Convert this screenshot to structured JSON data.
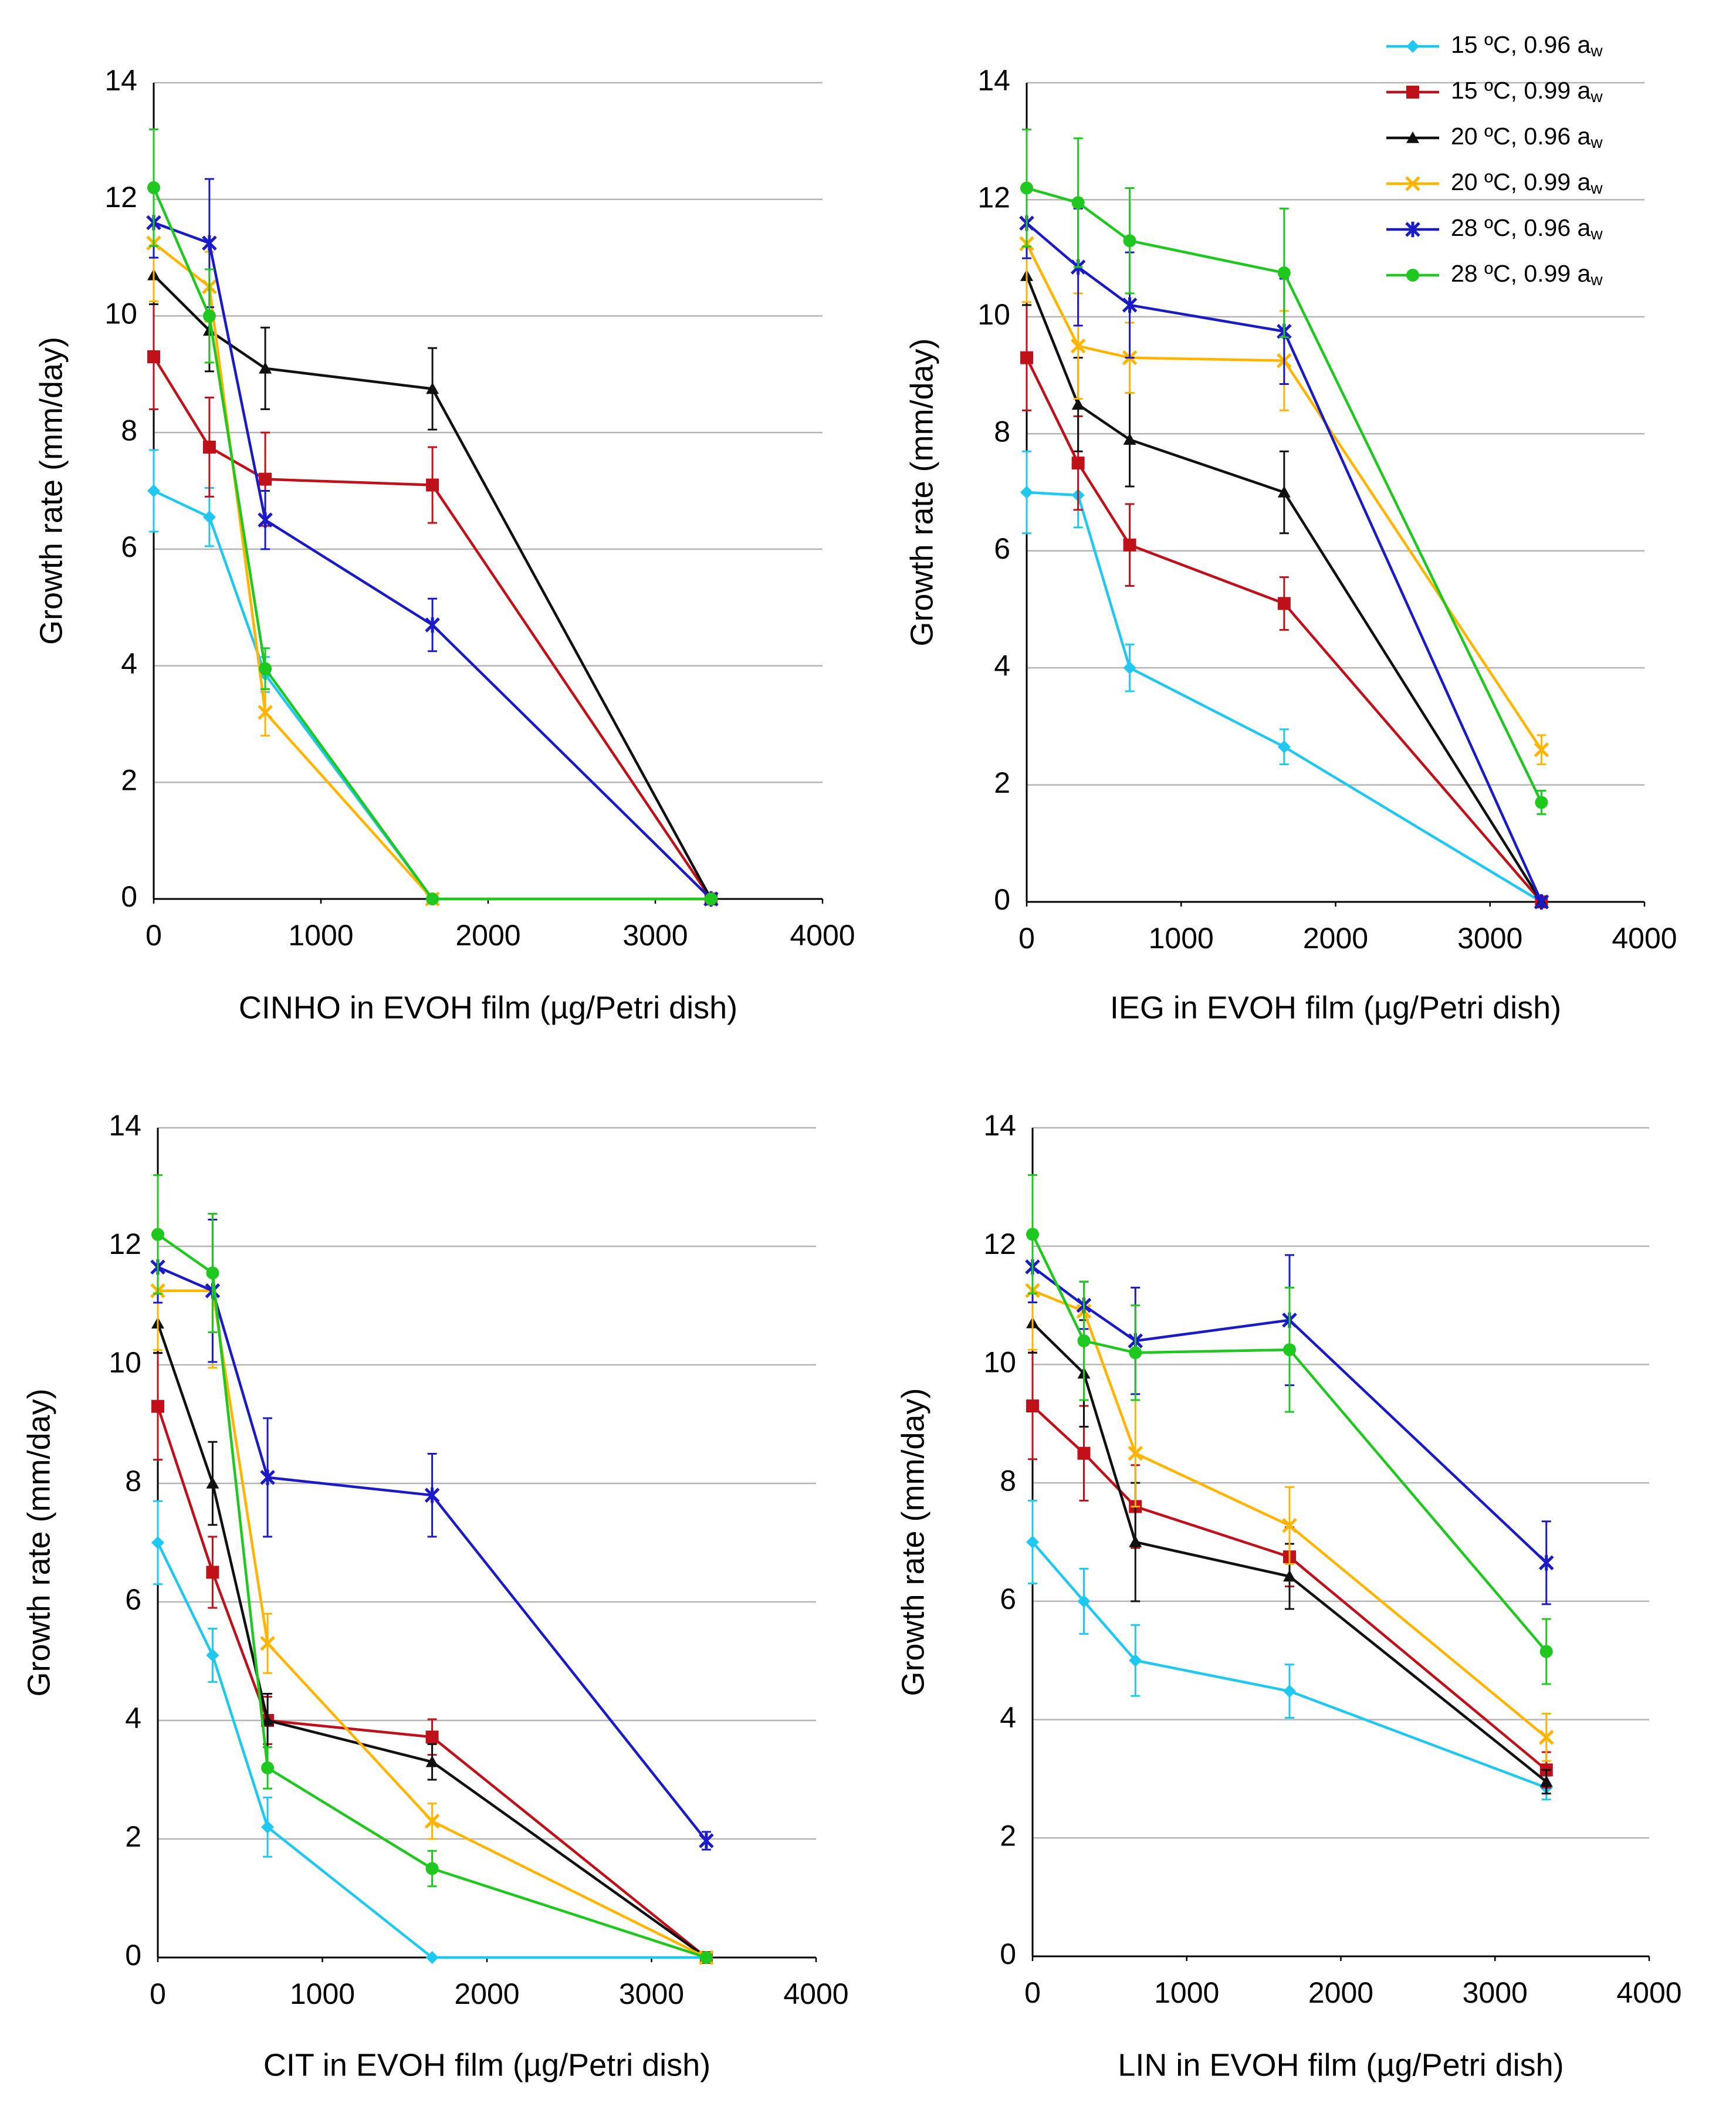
{
  "chart_data": [
    {
      "type": "line",
      "xlabel": "CINHO in EVOH film (µg/Petri dish)",
      "ylabel": "Growth rate (mm/day)",
      "x": [
        0,
        333,
        667,
        1667,
        3333
      ],
      "xlim": [
        0,
        4000
      ],
      "xticks": [
        0,
        1000,
        2000,
        3000,
        4000
      ],
      "ylim": [
        0,
        14
      ],
      "yticks": [
        0,
        2,
        4,
        6,
        8,
        10,
        12,
        14
      ],
      "grid": true,
      "series": [
        {
          "color": "#1ec8f0",
          "marker": "diamond",
          "values": [
            7.0,
            6.55,
            3.85,
            0,
            0
          ],
          "errors": [
            0.7,
            0.5,
            0.3,
            0,
            0
          ]
        },
        {
          "color": "#c0101a",
          "marker": "square",
          "values": [
            9.3,
            7.75,
            7.2,
            7.1,
            0
          ],
          "errors": [
            0.9,
            0.85,
            0.8,
            0.65,
            0
          ]
        },
        {
          "color": "#111111",
          "marker": "triangle",
          "values": [
            10.7,
            9.75,
            9.1,
            8.75,
            0
          ],
          "errors": [
            0.5,
            0.7,
            0.7,
            0.7,
            0
          ]
        },
        {
          "color": "#ffb400",
          "marker": "x",
          "values": [
            11.25,
            10.5,
            3.2,
            0,
            0
          ],
          "errors": [
            1.0,
            0.6,
            0.4,
            0,
            0
          ]
        },
        {
          "color": "#1a1ac8",
          "marker": "star",
          "values": [
            11.6,
            11.25,
            6.5,
            4.7,
            0
          ],
          "errors": [
            0.6,
            1.1,
            0.5,
            0.45,
            0
          ]
        },
        {
          "color": "#1ec81e",
          "marker": "circle",
          "values": [
            12.2,
            10.0,
            3.95,
            0,
            0
          ],
          "errors": [
            1.0,
            0.8,
            0.35,
            0,
            0
          ]
        }
      ]
    },
    {
      "type": "line",
      "xlabel": "IEG in EVOH film (µg/Petri dish)",
      "ylabel": "Growth rate (mm/day)",
      "x": [
        0,
        333,
        667,
        1667,
        3333
      ],
      "xlim": [
        0,
        4000
      ],
      "xticks": [
        0,
        1000,
        2000,
        3000,
        4000
      ],
      "ylim": [
        0,
        14
      ],
      "yticks": [
        0,
        2,
        4,
        6,
        8,
        10,
        12,
        14
      ],
      "grid": true,
      "legend": "upper right",
      "series": [
        {
          "name": "15 ºC, 0.96 aw",
          "color": "#1ec8f0",
          "marker": "diamond",
          "values": [
            7.0,
            6.95,
            4.0,
            2.65,
            0
          ],
          "errors": [
            0.7,
            0.55,
            0.4,
            0.3,
            0
          ]
        },
        {
          "name": "15 ºC, 0.99 aw",
          "color": "#c0101a",
          "marker": "square",
          "values": [
            9.3,
            7.5,
            6.1,
            5.1,
            0
          ],
          "errors": [
            0.9,
            0.8,
            0.7,
            0.45,
            0
          ]
        },
        {
          "name": "20 ºC, 0.96 aw",
          "color": "#111111",
          "marker": "triangle",
          "values": [
            10.7,
            8.5,
            7.9,
            7.0,
            0
          ],
          "errors": [
            0.5,
            0.8,
            0.8,
            0.7,
            0
          ]
        },
        {
          "name": "20 ºC, 0.99 aw",
          "color": "#ffb400",
          "marker": "x",
          "values": [
            11.25,
            9.5,
            9.3,
            9.25,
            2.6
          ],
          "errors": [
            1.0,
            0.9,
            0.6,
            0.85,
            0.25
          ]
        },
        {
          "name": "28 ºC, 0.96 aw",
          "color": "#1a1ac8",
          "marker": "star",
          "values": [
            11.6,
            10.85,
            10.2,
            9.75,
            0
          ],
          "errors": [
            0.6,
            1.0,
            0.9,
            0.9,
            0
          ]
        },
        {
          "name": "28 ºC, 0.99 aw",
          "color": "#1ec81e",
          "marker": "circle",
          "values": [
            12.2,
            11.95,
            11.3,
            10.75,
            1.7
          ],
          "errors": [
            1.0,
            1.1,
            0.9,
            1.1,
            0.2
          ]
        }
      ]
    },
    {
      "type": "line",
      "xlabel": "CIT in EVOH film (µg/Petri dish)",
      "ylabel": "Growth rate (mm/day)",
      "x": [
        0,
        333,
        667,
        1667,
        3333
      ],
      "xlim": [
        0,
        4000
      ],
      "xticks": [
        0,
        1000,
        2000,
        3000,
        4000
      ],
      "ylim": [
        0,
        14
      ],
      "yticks": [
        0,
        2,
        4,
        6,
        8,
        10,
        12,
        14
      ],
      "grid": true,
      "series": [
        {
          "color": "#1ec8f0",
          "marker": "diamond",
          "values": [
            7.0,
            5.1,
            2.2,
            0,
            0
          ],
          "errors": [
            0.7,
            0.45,
            0.5,
            0,
            0
          ]
        },
        {
          "color": "#c0101a",
          "marker": "square",
          "values": [
            9.3,
            6.5,
            4.0,
            3.72,
            0
          ],
          "errors": [
            0.9,
            0.6,
            0.4,
            0.3,
            0
          ]
        },
        {
          "color": "#111111",
          "marker": "triangle",
          "values": [
            10.7,
            8.0,
            4.0,
            3.3,
            0
          ],
          "errors": [
            0.5,
            0.7,
            0.45,
            0.3,
            0
          ]
        },
        {
          "color": "#ffb400",
          "marker": "x",
          "values": [
            11.25,
            11.25,
            5.3,
            2.3,
            0
          ],
          "errors": [
            1.0,
            1.3,
            0.5,
            0.3,
            0
          ]
        },
        {
          "color": "#1a1ac8",
          "marker": "star",
          "values": [
            11.65,
            11.25,
            8.1,
            7.8,
            1.97
          ],
          "errors": [
            0.6,
            1.2,
            1.0,
            0.7,
            0.15
          ]
        },
        {
          "color": "#1ec81e",
          "marker": "circle",
          "values": [
            12.2,
            11.55,
            3.2,
            1.5,
            0
          ],
          "errors": [
            1.0,
            1.0,
            0.35,
            0.3,
            0
          ]
        }
      ]
    },
    {
      "type": "line",
      "xlabel": "LIN in EVOH film (µg/Petri dish)",
      "ylabel": "Growth rate (mm/day)",
      "x": [
        0,
        333,
        667,
        1667,
        3333
      ],
      "xlim": [
        0,
        4000
      ],
      "xticks": [
        0,
        1000,
        2000,
        3000,
        4000
      ],
      "ylim": [
        0,
        14
      ],
      "yticks": [
        0,
        2,
        4,
        6,
        8,
        10,
        12,
        14
      ],
      "grid": true,
      "series": [
        {
          "color": "#1ec8f0",
          "marker": "diamond",
          "values": [
            7.0,
            6.0,
            5.0,
            4.48,
            2.85
          ],
          "errors": [
            0.7,
            0.55,
            0.6,
            0.45,
            0.2
          ]
        },
        {
          "color": "#c0101a",
          "marker": "square",
          "values": [
            9.3,
            8.5,
            7.6,
            6.75,
            3.15
          ],
          "errors": [
            0.9,
            0.8,
            0.7,
            0.5,
            0.3
          ]
        },
        {
          "color": "#111111",
          "marker": "triangle",
          "values": [
            10.7,
            9.85,
            7.0,
            6.42,
            2.95
          ],
          "errors": [
            0.5,
            0.9,
            1.0,
            0.55,
            0.2
          ]
        },
        {
          "color": "#ffb400",
          "marker": "x",
          "values": [
            11.25,
            10.9,
            8.5,
            7.28,
            3.7
          ],
          "errors": [
            1.0,
            0.5,
            0.9,
            0.65,
            0.4
          ]
        },
        {
          "color": "#1a1ac8",
          "marker": "star",
          "values": [
            11.65,
            11.0,
            10.4,
            10.75,
            6.65
          ],
          "errors": [
            0.6,
            0.4,
            0.9,
            1.1,
            0.7
          ]
        },
        {
          "color": "#1ec81e",
          "marker": "circle",
          "values": [
            12.2,
            10.4,
            10.2,
            10.25,
            5.15
          ],
          "errors": [
            1.0,
            1.0,
            0.8,
            1.05,
            0.55
          ]
        }
      ]
    }
  ]
}
